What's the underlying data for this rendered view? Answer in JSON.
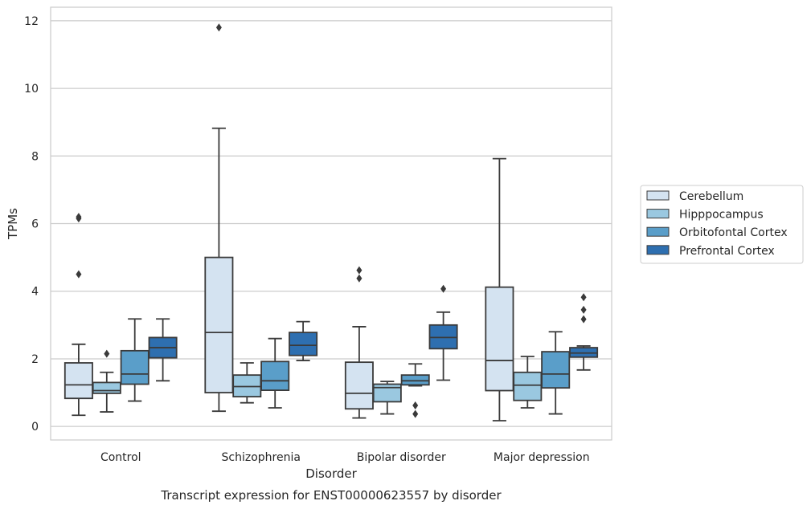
{
  "chart_data": {
    "type": "box",
    "caption": "Transcript expression for ENST00000623557 by disorder",
    "xlabel": "Disorder",
    "ylabel": "TPMs",
    "ylim": [
      -0.4,
      12.4
    ],
    "yticks": [
      0,
      2,
      4,
      6,
      8,
      10,
      12
    ],
    "grid": true,
    "legend_position": "right",
    "categories": [
      "Control",
      "Schizophrenia",
      "Bipolar disorder",
      "Major depression"
    ],
    "series": [
      {
        "name": "Cerebellum",
        "color": "#d4e3f1",
        "boxes": [
          {
            "whislo": 0.33,
            "q1": 0.83,
            "med": 1.23,
            "q3": 1.88,
            "whishi": 2.43,
            "fliers": [
              4.5,
              6.15,
              6.2
            ]
          },
          {
            "whislo": 0.45,
            "q1": 1.0,
            "med": 2.78,
            "q3": 5.0,
            "whishi": 8.82,
            "fliers": [
              11.8
            ]
          },
          {
            "whislo": 0.25,
            "q1": 0.52,
            "med": 0.98,
            "q3": 1.9,
            "whishi": 2.95,
            "fliers": [
              4.38,
              4.62
            ]
          },
          {
            "whislo": 0.17,
            "q1": 1.06,
            "med": 1.95,
            "q3": 4.12,
            "whishi": 7.92,
            "fliers": []
          }
        ]
      },
      {
        "name": "Hipppocampus",
        "color": "#9ac8e0",
        "boxes": [
          {
            "whislo": 0.43,
            "q1": 0.98,
            "med": 1.06,
            "q3": 1.3,
            "whishi": 1.6,
            "fliers": [
              2.15
            ]
          },
          {
            "whislo": 0.7,
            "q1": 0.88,
            "med": 1.18,
            "q3": 1.52,
            "whishi": 1.88,
            "fliers": []
          },
          {
            "whislo": 0.37,
            "q1": 0.73,
            "med": 1.15,
            "q3": 1.25,
            "whishi": 1.33,
            "fliers": []
          },
          {
            "whislo": 0.55,
            "q1": 0.77,
            "med": 1.22,
            "q3": 1.6,
            "whishi": 2.07,
            "fliers": []
          }
        ]
      },
      {
        "name": "Orbitofontal Cortex",
        "color": "#5a9ec9",
        "boxes": [
          {
            "whislo": 0.75,
            "q1": 1.25,
            "med": 1.55,
            "q3": 2.24,
            "whishi": 3.18,
            "fliers": []
          },
          {
            "whislo": 0.55,
            "q1": 1.07,
            "med": 1.35,
            "q3": 1.92,
            "whishi": 2.6,
            "fliers": []
          },
          {
            "whislo": 1.2,
            "q1": 1.23,
            "med": 1.35,
            "q3": 1.52,
            "whishi": 1.85,
            "fliers": [
              0.62,
              0.37
            ]
          },
          {
            "whislo": 0.37,
            "q1": 1.14,
            "med": 1.55,
            "q3": 2.21,
            "whishi": 2.8,
            "fliers": []
          }
        ]
      },
      {
        "name": "Prefrontal Cortex",
        "color": "#2e6fb0",
        "boxes": [
          {
            "whislo": 1.35,
            "q1": 2.03,
            "med": 2.33,
            "q3": 2.63,
            "whishi": 3.18,
            "fliers": []
          },
          {
            "whislo": 1.95,
            "q1": 2.1,
            "med": 2.4,
            "q3": 2.78,
            "whishi": 3.1,
            "fliers": []
          },
          {
            "whislo": 1.37,
            "q1": 2.3,
            "med": 2.63,
            "q3": 3.0,
            "whishi": 3.38,
            "fliers": [
              4.07
            ]
          },
          {
            "whislo": 1.67,
            "q1": 2.05,
            "med": 2.17,
            "q3": 2.33,
            "whishi": 2.38,
            "fliers": [
              3.17,
              3.45,
              3.82
            ]
          }
        ]
      }
    ]
  }
}
